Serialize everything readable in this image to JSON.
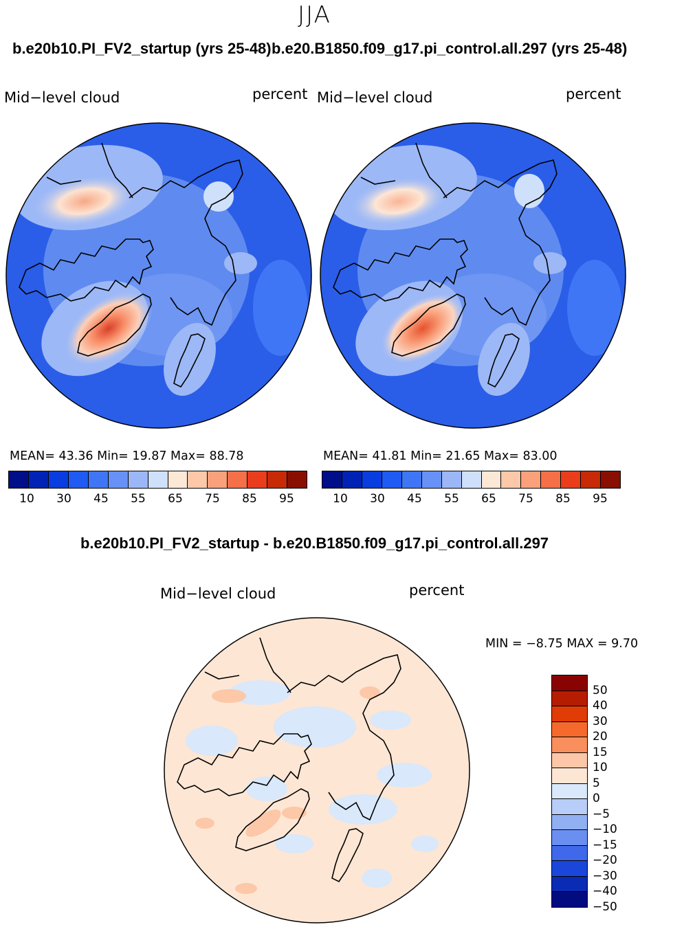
{
  "season": "JJA",
  "panels": [
    {
      "title": "b.e20b10.PI_FV2_startup (yrs 25-48)",
      "variable": "Mid−level cloud",
      "units": "percent",
      "stats": "MEAN=   43.36   Min=   19.87   Max=   88.78"
    },
    {
      "title": "b.e20.B1850.f09_g17.pi_control.all.297 (yrs 25-48)",
      "variable": "Mid−level cloud",
      "units": "percent",
      "stats": "MEAN=   41.81   Min=   21.65   Max=   83.00"
    }
  ],
  "abs_colorbar": {
    "colors": [
      "#000e8a",
      "#0023b5",
      "#0a3de0",
      "#1f5af2",
      "#3f76f5",
      "#6891f7",
      "#9cb7f7",
      "#cfe0fa",
      "#fde8d6",
      "#fcc8a8",
      "#faa07b",
      "#f56f48",
      "#ea3d1b",
      "#c82a07",
      "#8a0f03"
    ],
    "ticks": [
      "10",
      "30",
      "45",
      "55",
      "65",
      "75",
      "85",
      "95"
    ]
  },
  "difference": {
    "title": "b.e20b10.PI_FV2_startup - b.e20.B1850.f09_g17.pi_control.all.297",
    "variable": "Mid−level cloud",
    "units": "percent",
    "minmax": "MIN =   −8.75  MAX =     9.70",
    "colors": [
      "#8a0303",
      "#b51d02",
      "#e03c06",
      "#f56a2c",
      "#fa8f5e",
      "#fbc7a8",
      "#fde6d4",
      "#d9e8fa",
      "#b8cdf7",
      "#91b0f2",
      "#6b8ff0",
      "#3f68eb",
      "#1a47d9",
      "#0a2bb3",
      "#020c80"
    ],
    "labels": [
      "50",
      "40",
      "30",
      "20",
      "15",
      "10",
      "5",
      "0",
      "−5",
      "−10",
      "−15",
      "−20",
      "−30",
      "−40",
      "−50"
    ]
  }
}
